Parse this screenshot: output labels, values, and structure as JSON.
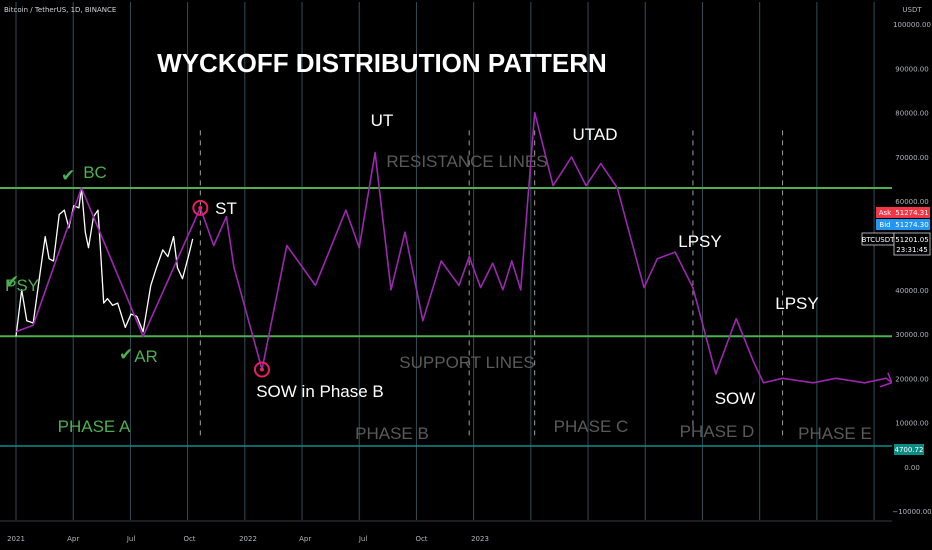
{
  "symbol": "Bitcoin / TetherUS, 1D, BINANCE",
  "title": "WYCKOFF DISTRIBUTION PATTERN",
  "currency": "USDT",
  "colors": {
    "pattern_line": "#9c27b0",
    "level_lines": "#4caf50",
    "price": "#ffffff",
    "grid": "#5e8ca0",
    "ask": "#f23645",
    "bid": "#2196f3",
    "circle": "#e91e63",
    "support_tag": "#0f8b85"
  },
  "y_axis": {
    "ticks": [
      100000,
      90000,
      80000,
      70000,
      60000,
      50000,
      40000,
      30000,
      20000,
      10000,
      0,
      -10000
    ],
    "tick_labels": [
      "100000.00",
      "90000.00",
      "80000.00",
      "70000.00",
      "60000.00",
      "50000.00",
      "40000.00",
      "30000.00",
      "20000.00",
      "10000.00",
      "0.00",
      "−10000.00"
    ]
  },
  "x_axis": {
    "tick_labels": [
      "2021",
      "Apr",
      "Jul",
      "Oct",
      "2022",
      "Apr",
      "Jul",
      "Oct",
      "2023"
    ],
    "tick_dates": [
      "2021-01-01",
      "2021-04-01",
      "2021-07-01",
      "2021-10-01",
      "2022-01-01",
      "2022-04-01",
      "2022-07-01",
      "2022-10-01",
      "2023-01-01"
    ]
  },
  "price_tags": {
    "ask_label": "Ask",
    "ask_value": "51274.31",
    "bid_label": "Bid",
    "bid_value": "51274.30",
    "symbol_label": "BTCUSDT",
    "last_value": "51201.05",
    "countdown": "23:31:45",
    "support_tag_value": "4700.72"
  },
  "annotations": {
    "psy": "PSY",
    "bc": "BC",
    "ar": "AR",
    "st": "ST",
    "sow_b": "SOW in Phase B",
    "ut": "UT",
    "utad": "UTAD",
    "lpsy1": "LPSY",
    "lpsy2": "LPSY",
    "sow": "SOW",
    "resistance": "RESISTANCE LINES",
    "support": "SUPPORT LINES",
    "phase_a": "PHASE A",
    "phase_b": "PHASE B",
    "phase_c": "PHASE C",
    "phase_d": "PHASE D",
    "phase_e": "PHASE E"
  },
  "chart_data": {
    "type": "line",
    "y_range": [
      -12000,
      105000
    ],
    "resistance_level": 63000,
    "support_level": 29500,
    "baseline_level": 4700.72,
    "series": [
      {
        "name": "BTCUSDT",
        "x": [
          "2021-01-01",
          "2021-01-10",
          "2021-01-18",
          "2021-01-28",
          "2021-02-08",
          "2021-02-16",
          "2021-02-22",
          "2021-03-01",
          "2021-03-10",
          "2021-03-18",
          "2021-03-25",
          "2021-04-02",
          "2021-04-10",
          "2021-04-14",
          "2021-04-20",
          "2021-04-25",
          "2021-05-03",
          "2021-05-10",
          "2021-05-14",
          "2021-05-19",
          "2021-05-25",
          "2021-06-02",
          "2021-06-10",
          "2021-06-22",
          "2021-07-01",
          "2021-07-10",
          "2021-07-20",
          "2021-08-01",
          "2021-08-10",
          "2021-08-20",
          "2021-08-28",
          "2021-09-06",
          "2021-09-12",
          "2021-09-20",
          "2021-09-30",
          "2021-10-06"
        ],
        "y": [
          29500,
          40000,
          33000,
          32500,
          44000,
          52000,
          47000,
          46500,
          57000,
          58000,
          54000,
          59000,
          58500,
          63000,
          53000,
          49500,
          56500,
          58000,
          49000,
          37000,
          38000,
          36500,
          37000,
          31500,
          34500,
          34000,
          30500,
          41000,
          45000,
          49000,
          47500,
          52000,
          45000,
          42500,
          48000,
          51500
        ]
      },
      {
        "name": "Pattern",
        "x": [
          "2021-01-01",
          "2021-01-28",
          "2021-04-14",
          "2021-07-20",
          "2021-10-18",
          "2021-11-08",
          "2021-11-28",
          "2021-12-10",
          "2022-01-23",
          "2022-03-03",
          "2022-04-17",
          "2022-06-04",
          "2022-06-25",
          "2022-07-20",
          "2022-08-14",
          "2022-09-05",
          "2022-10-03",
          "2022-11-01",
          "2022-11-29",
          "2022-12-15",
          "2023-01-02",
          "2023-01-21",
          "2023-02-06",
          "2023-02-20",
          "2023-03-06",
          "2023-03-28",
          "2023-04-26",
          "2023-05-25",
          "2023-06-17",
          "2023-07-10",
          "2023-08-05",
          "2023-09-16",
          "2023-10-07",
          "2023-11-04",
          "2023-12-02",
          "2024-01-07",
          "2024-02-08",
          "2024-03-07",
          "2024-03-22",
          "2024-04-21",
          "2024-06-08",
          "2024-07-14",
          "2024-08-28",
          "2024-10-01",
          "2024-10-10"
        ],
        "y": [
          30500,
          32000,
          63000,
          29500,
          58500,
          50000,
          56500,
          45000,
          22000,
          50000,
          41000,
          58000,
          49500,
          71000,
          40000,
          53000,
          33000,
          46500,
          41000,
          47500,
          40500,
          46000,
          40000,
          46500,
          40000,
          80000,
          63500,
          70000,
          63500,
          68500,
          63000,
          40500,
          47000,
          48500,
          40500,
          21000,
          33500,
          23500,
          19000,
          20000,
          19000,
          20000,
          19000,
          20000,
          19000
        ]
      }
    ]
  }
}
